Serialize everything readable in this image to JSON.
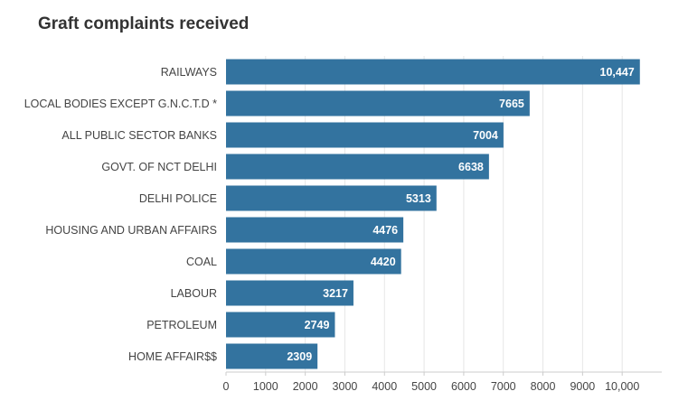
{
  "chart_data": {
    "type": "bar",
    "orientation": "horizontal",
    "title": "Graft complaints received",
    "xlabel": "",
    "ylabel": "",
    "categories": [
      "RAILWAYS",
      "LOCAL BODIES EXCEPT G.N.C.T.D *",
      "ALL PUBLIC SECTOR BANKS",
      "GOVT. OF NCT DELHI",
      "DELHI POLICE",
      "HOUSING AND URBAN AFFAIRS",
      "COAL",
      "LABOUR",
      "PETROLEUM",
      "HOME AFFAIR$$"
    ],
    "values": [
      10447,
      7665,
      7004,
      6638,
      5313,
      4476,
      4420,
      3217,
      2749,
      2309
    ],
    "value_labels": [
      "10,447",
      "7665",
      "7004",
      "6638",
      "5313",
      "4476",
      "4420",
      "3217",
      "2749",
      "2309"
    ],
    "xlim": [
      0,
      11000
    ],
    "ticks": [
      0,
      1000,
      2000,
      3000,
      4000,
      5000,
      6000,
      7000,
      8000,
      9000,
      10000
    ],
    "tick_labels": [
      "0",
      "1000",
      "2000",
      "3000",
      "4000",
      "5000",
      "6000",
      "7000",
      "8000",
      "9000",
      "10,000"
    ],
    "grid": true,
    "bar_color": "#33739f",
    "legend": "none"
  }
}
